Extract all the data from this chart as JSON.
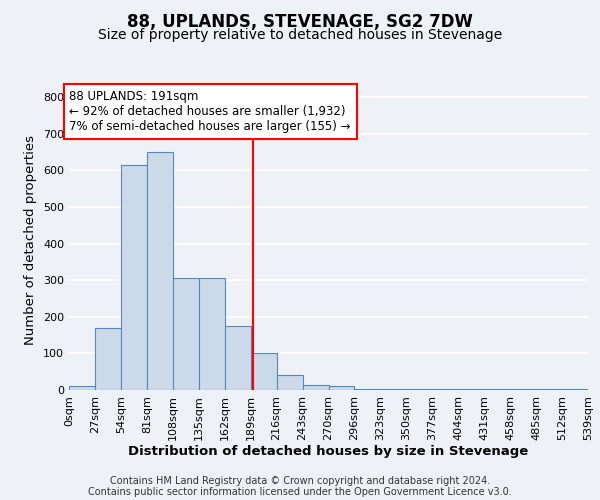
{
  "title": "88, UPLANDS, STEVENAGE, SG2 7DW",
  "subtitle": "Size of property relative to detached houses in Stevenage",
  "xlabel": "Distribution of detached houses by size in Stevenage",
  "ylabel": "Number of detached properties",
  "bin_edges": [
    0,
    27,
    54,
    81,
    108,
    135,
    162,
    189,
    216,
    243,
    270,
    297,
    324,
    351,
    378,
    405,
    432,
    459,
    486,
    513,
    540
  ],
  "bar_heights": [
    10,
    170,
    615,
    650,
    305,
    305,
    175,
    100,
    42,
    15,
    10,
    2,
    2,
    2,
    2,
    2,
    2,
    2,
    2,
    2
  ],
  "bar_color": "#ccd9e8",
  "bar_edge_color": "#5588bb",
  "vline_x": 191,
  "vline_color": "red",
  "annotation_text": "88 UPLANDS: 191sqm\n← 92% of detached houses are smaller (1,932)\n7% of semi-detached houses are larger (155) →",
  "annotation_box_color": "white",
  "annotation_box_edge_color": "red",
  "ylim": [
    0,
    820
  ],
  "yticks": [
    0,
    100,
    200,
    300,
    400,
    500,
    600,
    700,
    800
  ],
  "xtick_labels": [
    "0sqm",
    "27sqm",
    "54sqm",
    "81sqm",
    "108sqm",
    "135sqm",
    "162sqm",
    "189sqm",
    "216sqm",
    "243sqm",
    "270sqm",
    "296sqm",
    "323sqm",
    "350sqm",
    "377sqm",
    "404sqm",
    "431sqm",
    "458sqm",
    "485sqm",
    "512sqm",
    "539sqm"
  ],
  "footer_line1": "Contains HM Land Registry data © Crown copyright and database right 2024.",
  "footer_line2": "Contains public sector information licensed under the Open Government Licence v3.0.",
  "background_color": "#eef2f7",
  "grid_color": "white",
  "title_fontsize": 12,
  "subtitle_fontsize": 10,
  "axis_label_fontsize": 9.5,
  "tick_fontsize": 8,
  "footer_fontsize": 7,
  "annotation_fontsize": 8.5
}
